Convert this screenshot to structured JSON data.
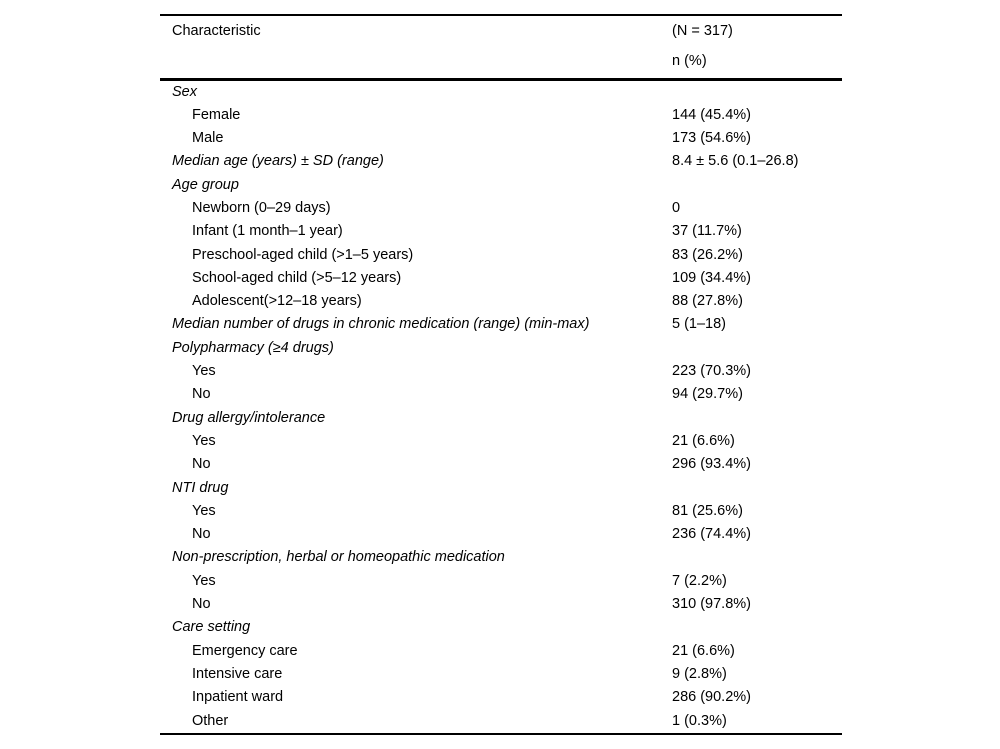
{
  "table": {
    "header": {
      "characteristic": "Characteristic",
      "n_total": "(N = 317)",
      "n_percent": "n (%)"
    },
    "rows": [
      {
        "label": "Sex",
        "value": "",
        "italic": true,
        "indent": false
      },
      {
        "label": "Female",
        "value": "144 (45.4%)",
        "italic": false,
        "indent": true
      },
      {
        "label": "Male",
        "value": "173 (54.6%)",
        "italic": false,
        "indent": true
      },
      {
        "label": "Median age (years) ± SD (range)",
        "value": "8.4 ± 5.6 (0.1–26.8)",
        "italic": true,
        "indent": false
      },
      {
        "label": "Age group",
        "value": "",
        "italic": true,
        "indent": false
      },
      {
        "label": "Newborn (0–29 days)",
        "value": "0",
        "italic": false,
        "indent": true
      },
      {
        "label": "Infant (1 month–1 year)",
        "value": "37 (11.7%)",
        "italic": false,
        "indent": true
      },
      {
        "label": "Preschool-aged child (>1–5 years)",
        "value": "83 (26.2%)",
        "italic": false,
        "indent": true
      },
      {
        "label": "School-aged child (>5–12 years)",
        "value": "109 (34.4%)",
        "italic": false,
        "indent": true
      },
      {
        "label": "Adolescent(>12–18 years)",
        "value": "88 (27.8%)",
        "italic": false,
        "indent": true
      },
      {
        "label": "Median number of drugs in chronic medication (range) (min-max)",
        "value": "5 (1–18)",
        "italic": true,
        "indent": false
      },
      {
        "label": "Polypharmacy (≥4 drugs)",
        "value": "",
        "italic": true,
        "indent": false
      },
      {
        "label": "Yes",
        "value": "223 (70.3%)",
        "italic": false,
        "indent": true
      },
      {
        "label": "No",
        "value": "94 (29.7%)",
        "italic": false,
        "indent": true
      },
      {
        "label": "Drug allergy/intolerance",
        "value": "",
        "italic": true,
        "indent": false
      },
      {
        "label": "Yes",
        "value": "21 (6.6%)",
        "italic": false,
        "indent": true
      },
      {
        "label": "No",
        "value": "296 (93.4%)",
        "italic": false,
        "indent": true
      },
      {
        "label": "NTI drug",
        "value": "",
        "italic": true,
        "indent": false
      },
      {
        "label": "Yes",
        "value": "81 (25.6%)",
        "italic": false,
        "indent": true
      },
      {
        "label": "No",
        "value": "236 (74.4%)",
        "italic": false,
        "indent": true
      },
      {
        "label": "Non-prescription, herbal or homeopathic medication",
        "value": "",
        "italic": true,
        "indent": false
      },
      {
        "label": "Yes",
        "value": "7 (2.2%)",
        "italic": false,
        "indent": true
      },
      {
        "label": "No",
        "value": "310 (97.8%)",
        "italic": false,
        "indent": true
      },
      {
        "label": "Care setting",
        "value": "",
        "italic": true,
        "indent": false
      },
      {
        "label": "Emergency care",
        "value": "21 (6.6%)",
        "italic": false,
        "indent": true
      },
      {
        "label": "Intensive care",
        "value": "9 (2.8%)",
        "italic": false,
        "indent": true
      },
      {
        "label": "Inpatient ward",
        "value": "286 (90.2%)",
        "italic": false,
        "indent": true
      },
      {
        "label": "Other",
        "value": "1 (0.3%)",
        "italic": false,
        "indent": true
      }
    ]
  }
}
